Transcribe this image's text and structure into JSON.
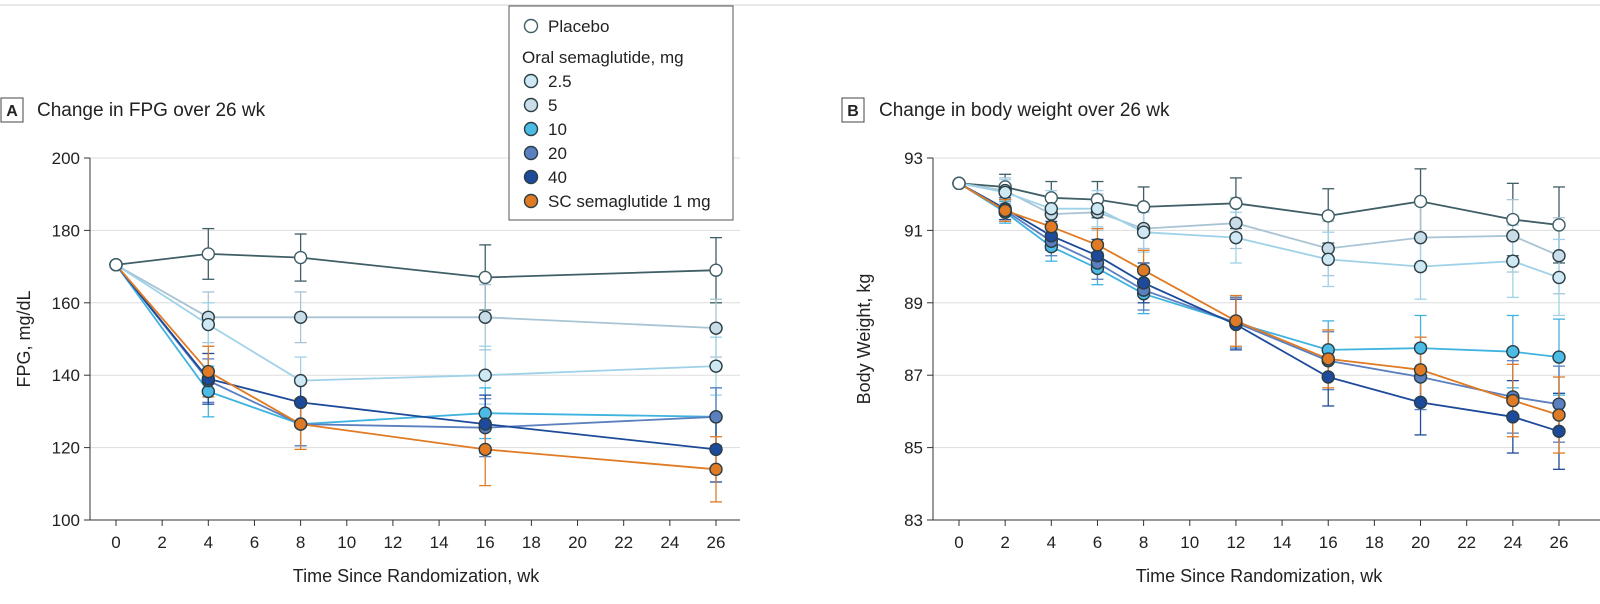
{
  "legend": {
    "placebo_label": "Placebo",
    "oral_group_label": "Oral semaglutide, mg",
    "items": [
      {
        "key": "placebo",
        "label": "Placebo",
        "color": "#3f5e66",
        "fill": "#ffffff"
      },
      {
        "key": "d2_5",
        "label": "2.5",
        "color": "#9fd2e8",
        "fill": "#cfe9f4"
      },
      {
        "key": "d5",
        "label": "5",
        "color": "#a9c4d4",
        "fill": "#c9dde8"
      },
      {
        "key": "d10",
        "label": "10",
        "color": "#3fb3e0",
        "fill": "#4cbbe6"
      },
      {
        "key": "d20",
        "label": "20",
        "color": "#5b7fbf",
        "fill": "#5b7fbf"
      },
      {
        "key": "d40",
        "label": "40",
        "color": "#1d4a9a",
        "fill": "#1d4a9a"
      },
      {
        "key": "sc",
        "label": "SC semaglutide 1 mg",
        "color": "#e07a24",
        "fill": "#e07a24"
      }
    ]
  },
  "chart_data": [
    {
      "type": "line",
      "panel_letter": "A",
      "title": "Change in FPG over 26 wk",
      "xlabel": "Time Since Randomization, wk",
      "ylabel": "FPG, mg/dL",
      "xlim": [
        0,
        26
      ],
      "ylim": [
        100,
        200
      ],
      "xticks": [
        0,
        2,
        4,
        6,
        8,
        10,
        12,
        14,
        16,
        18,
        20,
        22,
        24,
        26
      ],
      "yticks": [
        100,
        120,
        140,
        160,
        180,
        200
      ],
      "grid": "horizontal",
      "x": [
        0,
        4,
        8,
        16,
        26
      ],
      "series": [
        {
          "name": "Placebo",
          "key": "placebo",
          "values": [
            170.5,
            173.5,
            172.5,
            167,
            169
          ],
          "err": [
            0,
            7,
            6.5,
            9,
            9
          ]
        },
        {
          "name": "5",
          "key": "d5",
          "values": [
            170.5,
            156,
            156,
            156,
            153
          ],
          "err": [
            0,
            7,
            7,
            9,
            8
          ]
        },
        {
          "name": "2.5",
          "key": "d2_5",
          "values": [
            170.5,
            154,
            138.5,
            140,
            142.5
          ],
          "err": [
            0,
            6,
            6.5,
            8,
            8
          ]
        },
        {
          "name": "10",
          "key": "d10",
          "values": [
            170.5,
            135.5,
            126.5,
            129.5,
            128.5
          ],
          "err": [
            0,
            7,
            6,
            7,
            8
          ]
        },
        {
          "name": "20",
          "key": "d20",
          "values": [
            170.5,
            138.5,
            126.5,
            125.5,
            128.5
          ],
          "err": [
            0,
            6,
            6,
            8,
            8
          ]
        },
        {
          "name": "40",
          "key": "d40",
          "values": [
            170.5,
            139,
            132.5,
            126.5,
            119.5
          ],
          "err": [
            0,
            7,
            6,
            8,
            9
          ]
        },
        {
          "name": "SC semaglutide 1 mg",
          "key": "sc",
          "values": [
            170.5,
            141,
            126.5,
            119.5,
            114
          ],
          "err": [
            0,
            7,
            7,
            10,
            9
          ]
        }
      ]
    },
    {
      "type": "line",
      "panel_letter": "B",
      "title": "Change in body weight over 26 wk",
      "xlabel": "Time Since Randomization, wk",
      "ylabel": "Body Weight, kg",
      "xlim": [
        0,
        26
      ],
      "ylim": [
        83,
        93
      ],
      "xticks": [
        0,
        2,
        4,
        6,
        8,
        10,
        12,
        14,
        16,
        18,
        20,
        22,
        24,
        26
      ],
      "yticks": [
        83,
        85,
        87,
        89,
        91,
        93
      ],
      "grid": "horizontal",
      "x": [
        0,
        2,
        4,
        6,
        8,
        12,
        16,
        20,
        24,
        26
      ],
      "series": [
        {
          "name": "Placebo",
          "key": "placebo",
          "values": [
            92.3,
            92.2,
            91.9,
            91.85,
            91.65,
            91.75,
            91.4,
            91.8,
            91.3,
            91.15
          ],
          "err": [
            0,
            0.35,
            0.45,
            0.5,
            0.55,
            0.7,
            0.75,
            0.9,
            1.0,
            1.05
          ]
        },
        {
          "name": "5",
          "key": "d5",
          "values": [
            92.3,
            92.1,
            91.45,
            91.5,
            91.05,
            91.2,
            90.5,
            90.8,
            90.85,
            90.3
          ],
          "err": [
            0,
            0.35,
            0.5,
            0.5,
            0.55,
            0.7,
            0.75,
            0.9,
            1.0,
            1.05
          ]
        },
        {
          "name": "2.5",
          "key": "d2_5",
          "values": [
            92.3,
            92.05,
            91.6,
            91.6,
            90.95,
            90.8,
            90.2,
            90.0,
            90.15,
            89.7
          ],
          "err": [
            0,
            0.35,
            0.5,
            0.5,
            0.55,
            0.7,
            0.75,
            0.9,
            1.0,
            1.05
          ]
        },
        {
          "name": "10",
          "key": "d10",
          "values": [
            92.3,
            91.5,
            90.55,
            89.95,
            89.25,
            88.45,
            87.7,
            87.75,
            87.65,
            87.5
          ],
          "err": [
            0,
            0.3,
            0.4,
            0.45,
            0.55,
            0.7,
            0.8,
            0.9,
            1.0,
            1.05
          ]
        },
        {
          "name": "20",
          "key": "d20",
          "values": [
            92.3,
            91.55,
            90.7,
            90.1,
            89.35,
            88.45,
            87.4,
            86.95,
            86.4,
            86.2
          ],
          "err": [
            0,
            0.3,
            0.4,
            0.45,
            0.55,
            0.7,
            0.8,
            0.9,
            1.0,
            1.05
          ]
        },
        {
          "name": "40",
          "key": "d40",
          "values": [
            92.3,
            91.6,
            90.85,
            90.3,
            89.55,
            88.4,
            86.95,
            86.25,
            85.85,
            85.45
          ],
          "err": [
            0,
            0.3,
            0.4,
            0.45,
            0.55,
            0.7,
            0.8,
            0.9,
            1.0,
            1.05
          ]
        },
        {
          "name": "SC semaglutide 1 mg",
          "key": "sc",
          "values": [
            92.3,
            91.55,
            91.1,
            90.6,
            89.9,
            88.5,
            87.45,
            87.15,
            86.3,
            85.9
          ],
          "err": [
            0,
            0.3,
            0.4,
            0.45,
            0.55,
            0.7,
            0.8,
            0.9,
            1.0,
            1.05
          ]
        }
      ]
    }
  ]
}
